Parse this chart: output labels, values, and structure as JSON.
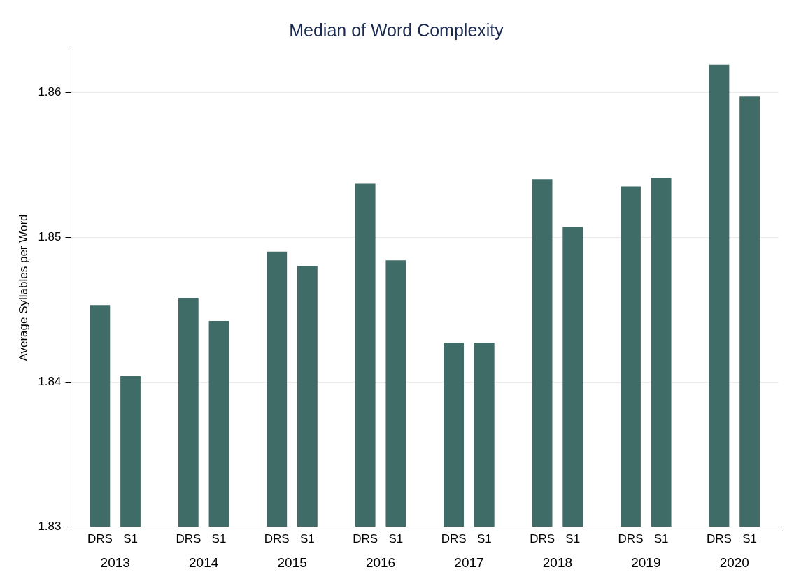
{
  "chart_data": {
    "type": "bar",
    "title": "Median of Word Complexity",
    "ylabel": "Average Syllables per Word",
    "categories": [
      "2013",
      "2014",
      "2015",
      "2016",
      "2017",
      "2018",
      "2019",
      "2020"
    ],
    "series": [
      {
        "name": "DRS",
        "color": "#406c67",
        "values": [
          1.8453,
          1.8458,
          1.849,
          1.8537,
          1.8427,
          1.854,
          1.8535,
          1.8619
        ]
      },
      {
        "name": "S1",
        "color": "#406c67",
        "values": [
          1.8404,
          1.8442,
          1.848,
          1.8484,
          1.8427,
          1.8507,
          1.8541,
          1.8597
        ]
      }
    ],
    "ylim": [
      1.83,
      1.863
    ],
    "yticks": [
      1.83,
      1.84,
      1.85,
      1.86
    ],
    "grid": "y",
    "legend": false
  }
}
